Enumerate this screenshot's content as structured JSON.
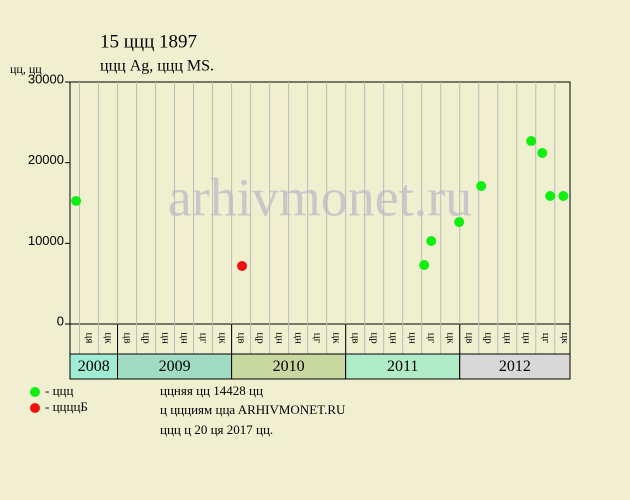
{
  "chart_data": {
    "type": "scatter",
    "title": "15 ццц 1897",
    "subtitle": "ццц Ag, ццц MS.",
    "y_label": "цц, цц",
    "watermark": "arhivmonet.ru",
    "x_groups": [
      {
        "year": "2008",
        "color": "#a0ecd4",
        "months": [
          "ця",
          "цк"
        ]
      },
      {
        "year": "2009",
        "color": "#a0dcc4",
        "months": [
          "цв",
          "цр",
          "цн",
          "цн",
          "цг",
          "цк"
        ]
      },
      {
        "year": "2010",
        "color": "#c8d8a0",
        "months": [
          "цв",
          "цр",
          "цн",
          "цн",
          "цг",
          "цк"
        ]
      },
      {
        "year": "2011",
        "color": "#b0ecc8",
        "months": [
          "цв",
          "цр",
          "цн",
          "цн",
          "цг",
          "цк"
        ]
      },
      {
        "year": "2012",
        "color": "#d8d8d8",
        "months": [
          "цв",
          "цр",
          "цн",
          "цн",
          "цг",
          "цк"
        ]
      }
    ],
    "xlim": [
      -1,
      25.3
    ],
    "ylim": [
      0,
      30000
    ],
    "yticks": [
      0,
      10000,
      20000,
      30000
    ],
    "series": [
      {
        "name": "- ццц",
        "color": "#10f010",
        "x": [
          -0.68,
          17.63,
          18,
          19.47,
          20.63,
          23.26,
          23.84,
          24.26,
          24.95
        ],
        "values": [
          15250,
          7310,
          10290,
          12640,
          17100,
          22680,
          21200,
          15870,
          15870
        ]
      },
      {
        "name": "- ццццБ",
        "color": "#f01010",
        "x": [
          8.05
        ],
        "values": [
          7190
        ]
      }
    ],
    "notes": [
      "ццняя цц 14428 цц",
      "ц ццциям ццa ARHIVMONET.RU",
      "ццц ц 20 ця 2017 цц."
    ]
  }
}
